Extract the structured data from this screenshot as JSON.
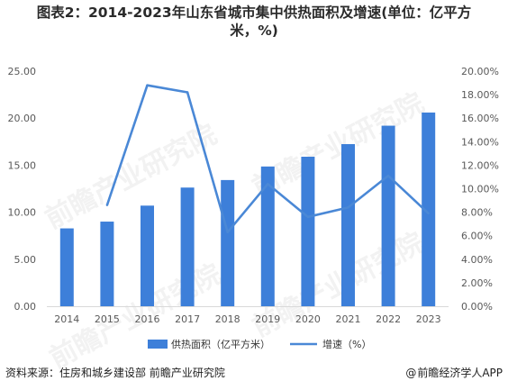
{
  "title_line1": "图表2：2014-2023年山东省城市集中供热面积及增速(单位：亿平方",
  "title_line2": "米，%)",
  "source": "资料来源：住房和城乡建设部 前瞻产业研究院",
  "credit": "前瞻经济学人APP",
  "watermark": "前瞻产业研究院",
  "colors": {
    "bar": "#3d7fd9",
    "line": "#4a88d6",
    "axis": "#d9d9d9",
    "text": "#595959"
  },
  "chart_data": {
    "type": "bar+line",
    "categories": [
      "2014",
      "2015",
      "2016",
      "2017",
      "2018",
      "2019",
      "2020",
      "2021",
      "2022",
      "2023"
    ],
    "series": [
      {
        "name": "供热面积（亿平方米）",
        "type": "bar",
        "axis": "left",
        "values": [
          8.28,
          9.0,
          10.7,
          12.62,
          13.42,
          14.86,
          15.9,
          17.24,
          19.2,
          20.6
        ]
      },
      {
        "name": "增速（%）",
        "type": "line",
        "axis": "right",
        "values": [
          null,
          8.6,
          18.8,
          18.2,
          6.3,
          10.4,
          7.6,
          8.4,
          11.1,
          7.9
        ]
      }
    ],
    "y_left": {
      "ticks": [
        "0.00",
        "5.00",
        "10.00",
        "15.00",
        "20.00",
        "25.00"
      ],
      "ylim": [
        0,
        25
      ]
    },
    "y_right": {
      "ticks": [
        "0.00%",
        "2.00%",
        "4.00%",
        "6.00%",
        "8.00%",
        "10.00%",
        "12.00%",
        "14.00%",
        "16.00%",
        "18.00%",
        "20.00%"
      ],
      "ylim": [
        0,
        20
      ]
    },
    "legend_position": "bottom",
    "grid": false
  }
}
